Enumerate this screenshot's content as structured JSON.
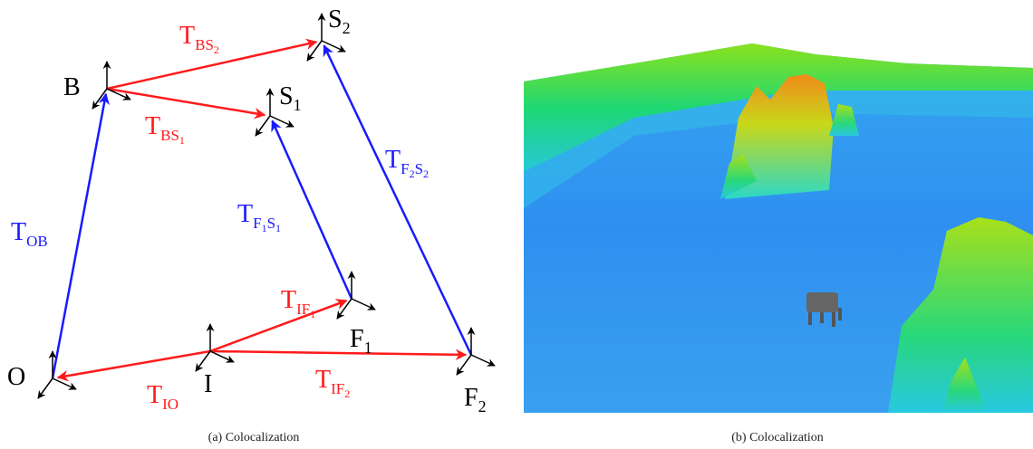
{
  "panels": [
    {
      "caption": "(a) Colocalization",
      "nodes": [
        {
          "name": "O"
        },
        {
          "name": "B"
        },
        {
          "name": "S",
          "sub": "1"
        },
        {
          "name": "S",
          "sub": "2"
        },
        {
          "name": "I"
        },
        {
          "name": "F",
          "sub": "1"
        },
        {
          "name": "F",
          "sub": "2"
        }
      ],
      "edges": [
        {
          "symbol": "T",
          "sub": "OB",
          "color": "#1a1aff"
        },
        {
          "symbol": "T",
          "sub": "BS",
          "subsub": "1",
          "color": "#ff1a1a"
        },
        {
          "symbol": "T",
          "sub": "BS",
          "subsub": "2",
          "color": "#ff1a1a"
        },
        {
          "symbol": "T",
          "sub": "F",
          "subsub": "1",
          "sub2": "S",
          "subsub2": "1",
          "color": "#1a1aff"
        },
        {
          "symbol": "T",
          "sub": "F",
          "subsub": "2",
          "sub2": "S",
          "subsub2": "2",
          "color": "#1a1aff"
        },
        {
          "symbol": "T",
          "sub": "IF",
          "subsub": "1",
          "color": "#ff1a1a"
        },
        {
          "symbol": "T",
          "sub": "IF",
          "subsub": "2",
          "color": "#ff1a1a"
        },
        {
          "symbol": "T",
          "sub": "IO",
          "color": "#ff1a1a"
        }
      ]
    },
    {
      "caption": "(b) Colocalization"
    }
  ]
}
